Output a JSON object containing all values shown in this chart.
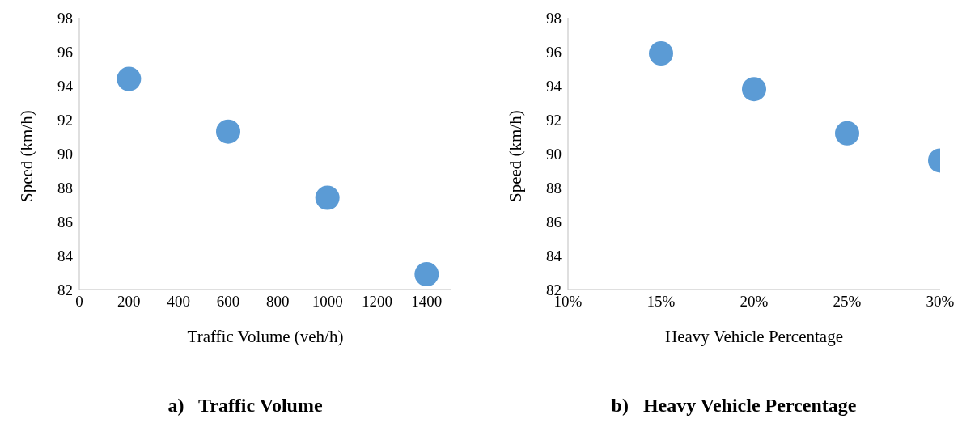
{
  "chart_data": [
    {
      "type": "scatter",
      "title": "a)   Traffic Volume",
      "xlabel": "Traffic Volume (veh/h)",
      "ylabel": "Speed (km/h)",
      "x": [
        200,
        600,
        1000,
        1400
      ],
      "series": [
        {
          "color": "#5b9bd5",
          "values": [
            94.4,
            91.3,
            87.4,
            82.9
          ]
        }
      ],
      "xlim": [
        0,
        1500
      ],
      "xticks": [
        0,
        200,
        400,
        600,
        800,
        1000,
        1200,
        1400
      ],
      "ylim": [
        82,
        98
      ],
      "yticks": [
        82,
        84,
        86,
        88,
        90,
        92,
        94,
        96,
        98
      ],
      "grid": false,
      "legend": false,
      "marker": "circle"
    },
    {
      "type": "scatter",
      "title": "b)   Heavy Vehicle Percentage",
      "xlabel": "Heavy Vehicle Percentage",
      "ylabel": "Speed (km/h)",
      "x": [
        15,
        20,
        25,
        30
      ],
      "series": [
        {
          "color": "#5b9bd5",
          "values": [
            95.9,
            93.8,
            91.2,
            89.6
          ]
        }
      ],
      "xlim": [
        10,
        30
      ],
      "xticks": [
        {
          "value": 10,
          "label": "10%"
        },
        {
          "value": 15,
          "label": "15%"
        },
        {
          "value": 20,
          "label": "20%"
        },
        {
          "value": 25,
          "label": "25%"
        },
        {
          "value": 30,
          "label": "30%"
        }
      ],
      "ylim": [
        82,
        98
      ],
      "yticks": [
        82,
        84,
        86,
        88,
        90,
        92,
        94,
        96,
        98
      ],
      "grid": false,
      "legend": false,
      "marker": "circle"
    }
  ]
}
